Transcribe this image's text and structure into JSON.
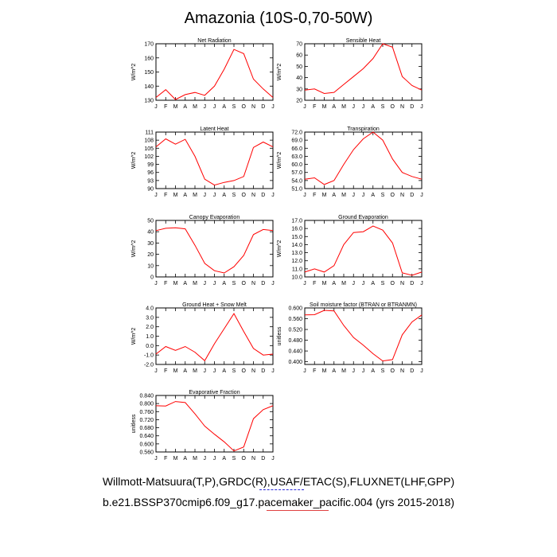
{
  "title": "Amazonia (10S-0,70-50W)",
  "footer": {
    "line1": "Willmott-Matsuura(T,P),GRDC(R),USAF/ETAC(S),FLUXNET(LHF,GPP)",
    "line2": "b.e21.BSSP370cmip6.f09_g17.pacemaker_pacific.004 (yrs 2015-2018)"
  },
  "colors": {
    "series": "#ff0000",
    "axis": "#000000",
    "underline_1": "#2b2bd9",
    "underline_2": "#e04040"
  },
  "chart_data": [
    {
      "type": "line",
      "title": "Net Radiation",
      "ylabel": "W/m^2",
      "x": [
        "J",
        "F",
        "M",
        "A",
        "M",
        "J",
        "J",
        "A",
        "S",
        "O",
        "N",
        "D",
        "J"
      ],
      "ylim": [
        130,
        170
      ],
      "yticks": [
        "130",
        "140",
        "150",
        "160",
        "170"
      ],
      "values": [
        132,
        137.5,
        130.5,
        134,
        135.5,
        133.5,
        140,
        152,
        166,
        163,
        145,
        138,
        132
      ]
    },
    {
      "type": "line",
      "title": "Sensible Heat",
      "ylabel": "W/m^2",
      "x": [
        "J",
        "F",
        "M",
        "A",
        "M",
        "J",
        "J",
        "A",
        "S",
        "O",
        "N",
        "D",
        "J"
      ],
      "ylim": [
        20,
        70
      ],
      "yticks": [
        "20",
        "30",
        "40",
        "50",
        "60",
        "70"
      ],
      "values": [
        29,
        30,
        26,
        27,
        34,
        41,
        48,
        57,
        70,
        67,
        41,
        33,
        29
      ]
    },
    {
      "type": "line",
      "title": "Latent Heat",
      "ylabel": "W/m^2",
      "x": [
        "J",
        "F",
        "M",
        "A",
        "M",
        "J",
        "J",
        "A",
        "S",
        "O",
        "N",
        "D",
        "J"
      ],
      "ylim": [
        90,
        111
      ],
      "yticks": [
        "90",
        "93",
        "96",
        "99",
        "102",
        "105",
        "108",
        "111"
      ],
      "values": [
        105.5,
        108.5,
        106.5,
        108.3,
        102,
        93.5,
        91.3,
        92.3,
        93,
        94.5,
        105.3,
        107.3,
        105.5
      ]
    },
    {
      "type": "line",
      "title": "Transpiration",
      "ylabel": "W/m^2",
      "x": [
        "J",
        "F",
        "M",
        "A",
        "M",
        "J",
        "J",
        "A",
        "S",
        "O",
        "N",
        "D",
        "J"
      ],
      "ylim": [
        51,
        72
      ],
      "yticks": [
        "51.0",
        "54.0",
        "57.0",
        "60.0",
        "63.0",
        "66.0",
        "69.0",
        "72.0"
      ],
      "values": [
        54.5,
        55,
        52.5,
        54,
        60,
        65.5,
        69.5,
        72,
        69,
        62,
        57,
        55.5,
        54.5
      ]
    },
    {
      "type": "line",
      "title": "Canopy Evaporation",
      "ylabel": "W/m^2",
      "x": [
        "J",
        "F",
        "M",
        "A",
        "M",
        "J",
        "J",
        "A",
        "S",
        "O",
        "N",
        "D",
        "J"
      ],
      "ylim": [
        0,
        50
      ],
      "yticks": [
        "0",
        "10",
        "20",
        "30",
        "40",
        "50"
      ],
      "values": [
        41,
        43,
        43.5,
        42.5,
        28,
        12,
        5.5,
        3.5,
        9,
        19,
        37.5,
        42,
        41
      ]
    },
    {
      "type": "line",
      "title": "Ground Evaporation",
      "ylabel": "W/m^2",
      "x": [
        "J",
        "F",
        "M",
        "A",
        "M",
        "J",
        "J",
        "A",
        "S",
        "O",
        "N",
        "D",
        "J"
      ],
      "ylim": [
        10,
        17
      ],
      "yticks": [
        "10.0",
        "11.0",
        "12.0",
        "13.0",
        "14.0",
        "15.0",
        "16.0",
        "17.0"
      ],
      "values": [
        10.6,
        11,
        10.6,
        11.4,
        14,
        15.5,
        15.6,
        16.3,
        15.8,
        14.2,
        10.5,
        10.2,
        10.6
      ]
    },
    {
      "type": "line",
      "title": "Ground Heat + Snow Melt",
      "ylabel": "W/m^2",
      "x": [
        "J",
        "F",
        "M",
        "A",
        "M",
        "J",
        "J",
        "A",
        "S",
        "O",
        "N",
        "D",
        "J"
      ],
      "ylim": [
        -2,
        4
      ],
      "yticks": [
        "-2.0",
        "-1.0",
        "0.0",
        "1.0",
        "2.0",
        "3.0",
        "4.0"
      ],
      "values": [
        -0.9,
        -0.1,
        -0.5,
        -0.1,
        -0.7,
        -1.6,
        0.2,
        1.8,
        3.4,
        1.5,
        -0.3,
        -1.0,
        -0.9
      ]
    },
    {
      "type": "line",
      "title": "Soil moisture factor (BTRAN or BTRANMN)",
      "ylabel": "unitless",
      "x": [
        "J",
        "F",
        "M",
        "A",
        "M",
        "J",
        "J",
        "A",
        "S",
        "O",
        "N",
        "D",
        "J"
      ],
      "ylim": [
        0.39,
        0.6
      ],
      "yticks": [
        "0.400",
        "0.440",
        "0.480",
        "0.520",
        "0.560",
        "0.600"
      ],
      "values": [
        0.574,
        0.575,
        0.591,
        0.589,
        0.535,
        0.49,
        0.462,
        0.43,
        0.403,
        0.408,
        0.5,
        0.548,
        0.574
      ]
    },
    {
      "type": "line",
      "title": "Evaporative Fraction",
      "ylabel": "unitless",
      "x": [
        "J",
        "F",
        "M",
        "A",
        "M",
        "J",
        "J",
        "A",
        "S",
        "O",
        "N",
        "D",
        "J"
      ],
      "ylim": [
        0.56,
        0.84
      ],
      "yticks": [
        "0.560",
        "0.600",
        "0.640",
        "0.680",
        "0.720",
        "0.760",
        "0.800",
        "0.840"
      ],
      "values": [
        0.789,
        0.788,
        0.81,
        0.805,
        0.749,
        0.688,
        0.648,
        0.61,
        0.565,
        0.585,
        0.725,
        0.77,
        0.789
      ]
    }
  ]
}
